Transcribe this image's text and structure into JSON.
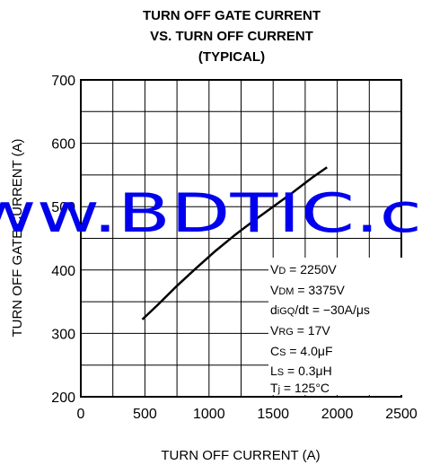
{
  "chart_data": {
    "type": "line",
    "title": [
      "TURN OFF GATE CURRENT",
      "VS. TURN OFF CURRENT",
      "(TYPICAL)"
    ],
    "xlabel": "TURN OFF CURRENT  (A)",
    "ylabel": "TURN OFF GATE CURRENT  (A)",
    "xlim": [
      0,
      2500
    ],
    "ylim": [
      200,
      700
    ],
    "xticks": [
      "0",
      "500",
      "1000",
      "1500",
      "2000",
      "2500"
    ],
    "yticks": [
      "200",
      "300",
      "400",
      "500",
      "600",
      "700"
    ],
    "grid": true,
    "series": [
      {
        "x": [
          480,
          600,
          750,
          900,
          1050,
          1200,
          1350,
          1500,
          1650,
          1800,
          1920
        ],
        "y": [
          322,
          345,
          375,
          403,
          430,
          455,
          478,
          500,
          522,
          545,
          562
        ]
      }
    ],
    "conditions": [
      "VD = 2250V",
      "VDM = 3375V",
      "diGQ/dt = −30A/µs",
      "VRG = 17V",
      "CS = 4.0µF",
      "LS = 0.3µH",
      "Tj = 125°C"
    ]
  },
  "watermark": "ww.BDTIC.c",
  "colors": {
    "watermark": "#0000ee",
    "line": "#000000"
  }
}
